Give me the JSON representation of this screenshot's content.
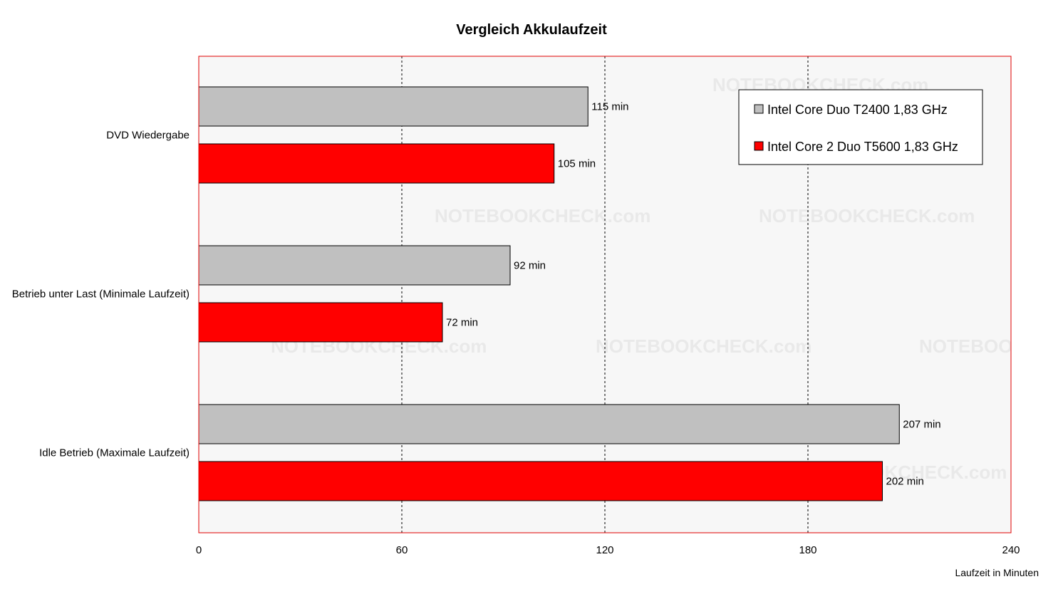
{
  "chart_data": {
    "type": "bar",
    "orientation": "horizontal",
    "title": "Vergleich Akkulaufzeit",
    "xlabel": "Laufzeit in Minuten",
    "ylabel": "",
    "xlim": [
      0,
      240
    ],
    "xticks": [
      0,
      60,
      120,
      180,
      240
    ],
    "grid": true,
    "legend_position": "top-right",
    "categories": [
      "DVD Wiedergabe",
      "Betrieb unter Last (Minimale Laufzeit)",
      "Idle Betrieb (Maximale Laufzeit)"
    ],
    "value_suffix": " min",
    "series": [
      {
        "name": "Intel Core Duo T2400 1,83 GHz",
        "color": "#c0c0c0",
        "values": [
          115,
          92,
          207
        ]
      },
      {
        "name": "Intel Core 2 Duo T5600 1,83 GHz",
        "color": "#ff0000",
        "values": [
          105,
          72,
          202
        ]
      }
    ],
    "watermark": "NOTEBOOKCHECK.com",
    "frame_color": "#e00000",
    "plot_background": "#f7f7f7"
  }
}
